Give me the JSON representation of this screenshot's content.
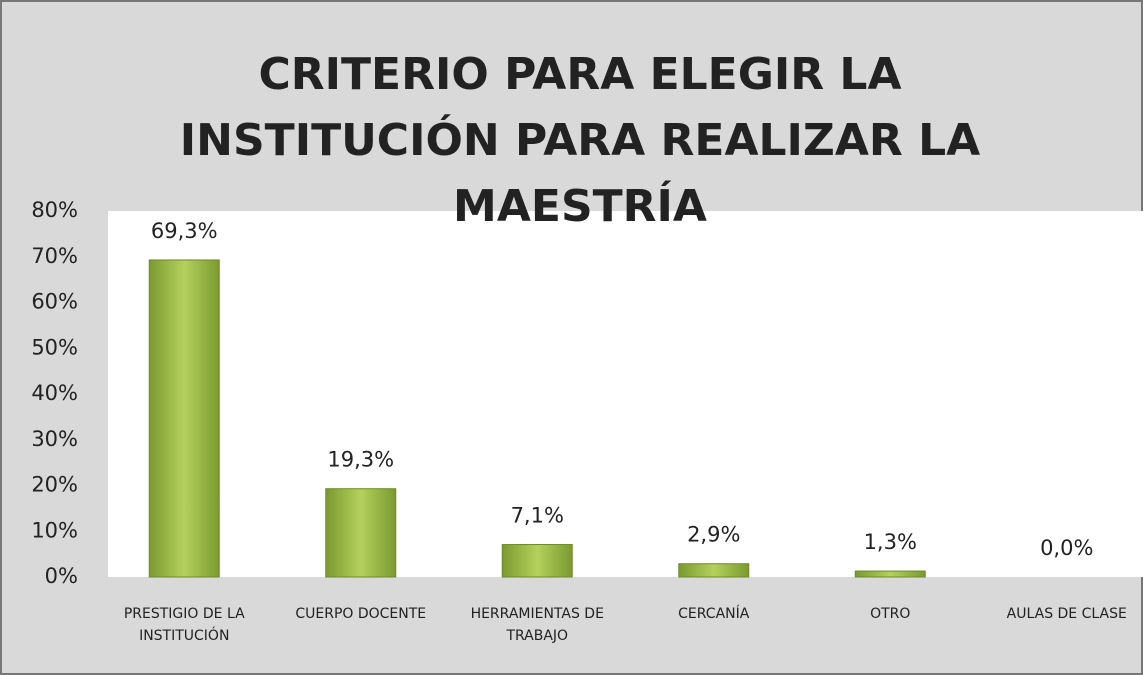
{
  "chart_data": {
    "type": "bar",
    "title": "CRITERIO PARA ELEGIR LA INSTITUCIÓN PARA REALIZAR LA MAESTRÍA",
    "categories": [
      "PRESTIGIO DE LA INSTITUCIÓN",
      "CUERPO DOCENTE",
      "HERRAMIENTAS DE TRABAJO",
      "CERCANÍA",
      "OTRO",
      "AULAS DE CLASE"
    ],
    "values": [
      69.3,
      19.3,
      7.1,
      2.9,
      1.3,
      0.0
    ],
    "value_labels": [
      "69,3%",
      "19,3%",
      "7,1%",
      "2,9%",
      "1,3%",
      "0,0%"
    ],
    "color": "#9bbb59",
    "ylim": [
      0,
      80
    ],
    "yticks": [
      {
        "value": 0,
        "label": "0%"
      },
      {
        "value": 10,
        "label": "10%"
      },
      {
        "value": 20,
        "label": "20%"
      },
      {
        "value": 30,
        "label": "30%"
      },
      {
        "value": 40,
        "label": "40%"
      },
      {
        "value": 50,
        "label": "50%"
      },
      {
        "value": 60,
        "label": "60%"
      },
      {
        "value": 70,
        "label": "70%"
      },
      {
        "value": 80,
        "label": "80%"
      }
    ],
    "grid": false
  }
}
